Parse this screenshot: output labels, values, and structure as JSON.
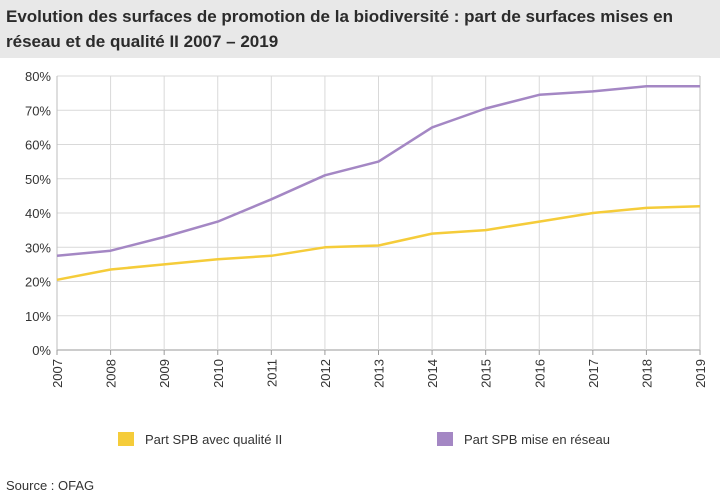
{
  "title": "Evolution des surfaces de promotion de la biodiversité : part de surfaces mises en réseau et de qualité II 2007 – 2019",
  "source": "Source : OFAG",
  "chart_data": {
    "type": "line",
    "title": "Evolution des surfaces de promotion de la biodiversité : part de surfaces mises en réseau et de qualité II 2007 – 2019",
    "xlabel": "",
    "ylabel": "",
    "x": [
      "2007",
      "2008",
      "2009",
      "2010",
      "2011",
      "2012",
      "2013",
      "2014",
      "2015",
      "2016",
      "2017",
      "2018",
      "2019"
    ],
    "ylim": [
      0,
      80
    ],
    "yticks": [
      "0%",
      "10%",
      "20%",
      "30%",
      "40%",
      "50%",
      "60%",
      "70%",
      "80%"
    ],
    "ytick_values": [
      0,
      10,
      20,
      30,
      40,
      50,
      60,
      70,
      80
    ],
    "grid": true,
    "legend_position": "bottom",
    "series": [
      {
        "name": "Part SPB avec qualité II",
        "color": "#f5cc3a",
        "values": [
          20.5,
          23.5,
          25,
          26.5,
          27.5,
          30,
          30.5,
          34,
          35,
          37.5,
          40,
          41.5,
          42
        ]
      },
      {
        "name": "Part SPB mise en réseau",
        "color": "#a487c4",
        "values": [
          27.5,
          29,
          33,
          37.5,
          44,
          51,
          55,
          65,
          70.5,
          74.5,
          75.5,
          77,
          77
        ]
      }
    ]
  }
}
